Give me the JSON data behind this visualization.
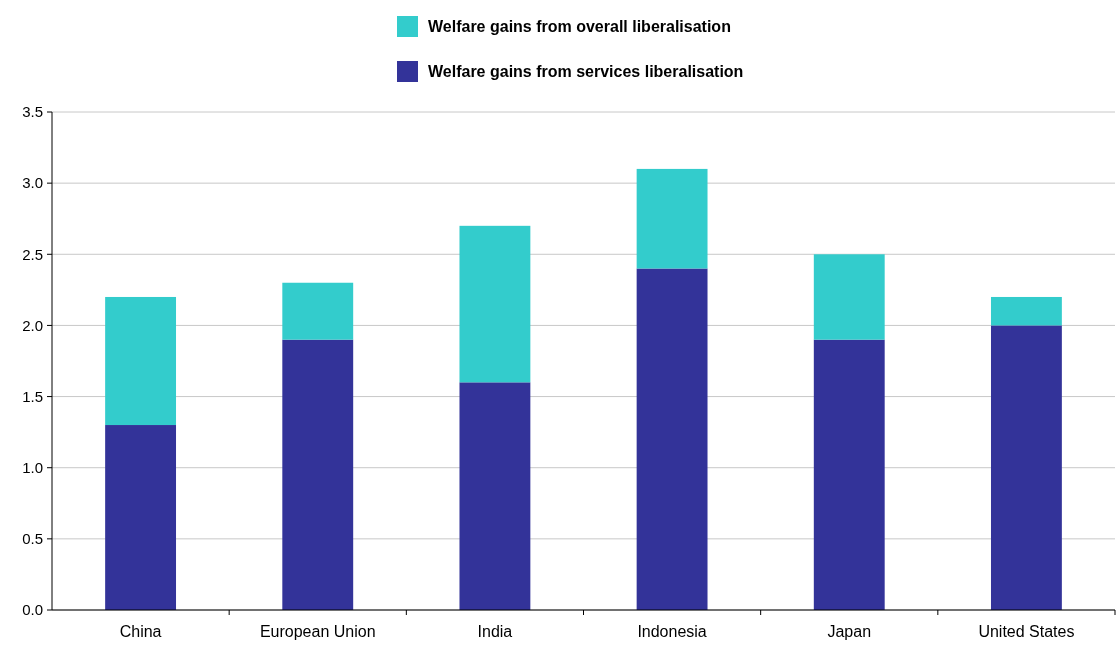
{
  "chart_data": {
    "type": "bar",
    "stacked": true,
    "categories": [
      "China",
      "European Union",
      "India",
      "Indonesia",
      "Japan",
      "United States"
    ],
    "series": [
      {
        "name": "Welfare gains from services liberalisation",
        "color": "#333399",
        "values": [
          1.3,
          1.9,
          1.6,
          2.4,
          1.9,
          2.0
        ]
      },
      {
        "name": "Welfare gains from overall liberalisation",
        "color": "#33cccc",
        "values": [
          0.9,
          0.4,
          1.1,
          0.7,
          0.6,
          0.2
        ]
      }
    ],
    "ylim": [
      0,
      3.5
    ],
    "yticks": [
      {
        "value": 0,
        "label": "0.0"
      },
      0.5,
      {
        "value": 1,
        "label": "1.0"
      },
      1.5,
      {
        "value": 2,
        "label": "2.0"
      },
      2.5,
      {
        "value": 3,
        "label": "3.0"
      },
      3.5
    ],
    "grid": "y",
    "legend": "top"
  }
}
